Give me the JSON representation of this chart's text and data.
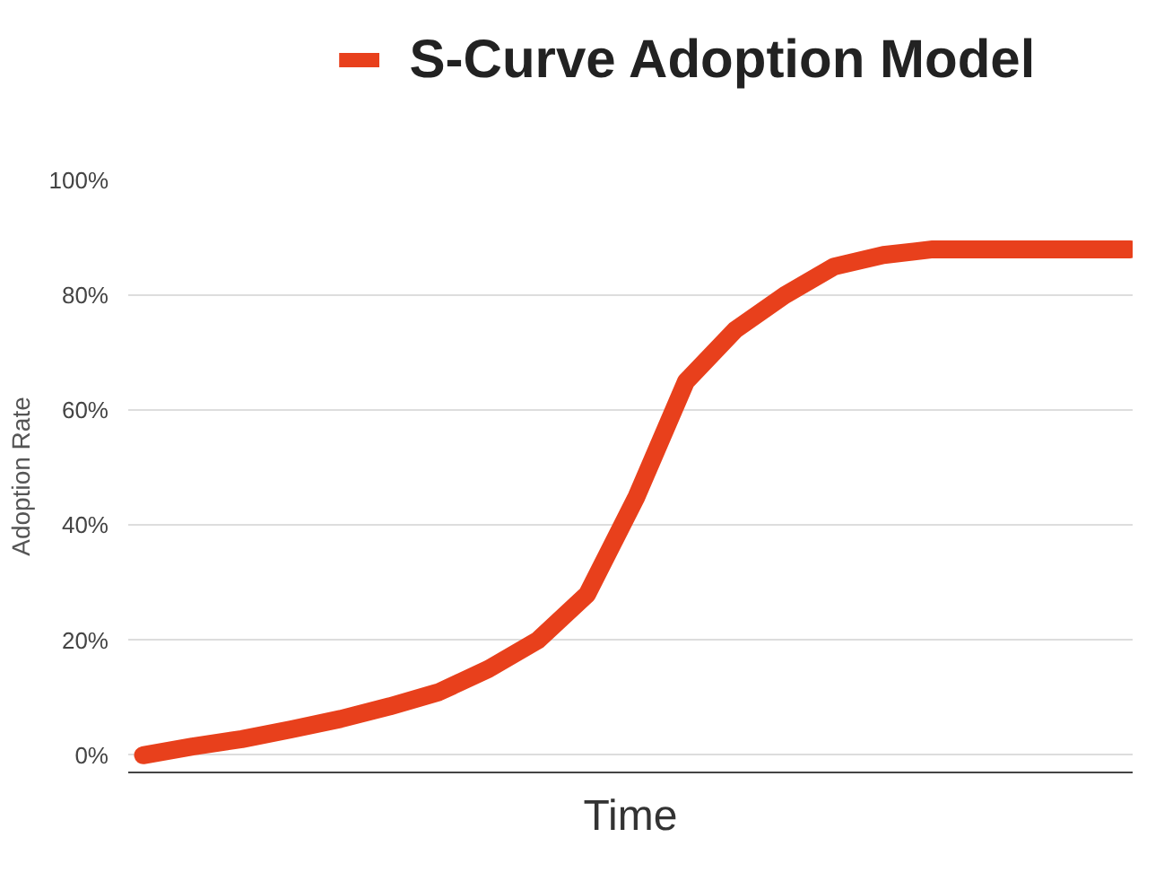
{
  "chart_data": {
    "type": "line",
    "ylabel": "Adoption Rate",
    "xlabel": "Time",
    "categories": [
      null,
      null,
      null,
      null,
      null,
      null,
      null,
      null,
      null,
      null,
      null,
      null,
      null,
      null,
      null,
      null,
      null,
      null,
      null,
      null,
      null
    ],
    "series": [
      {
        "name": "S-Curve Adoption Model",
        "color": "#e8401c",
        "values": [
          0,
          1.5,
          2.8,
          4.5,
          6.3,
          8.5,
          11,
          15,
          20,
          28,
          45,
          65,
          74,
          80,
          85,
          87,
          88,
          88,
          88,
          88,
          88
        ]
      }
    ],
    "ylim": [
      -3,
      100
    ],
    "yticks": [
      {
        "value": 0,
        "label": "0%"
      },
      {
        "value": 20,
        "label": "20%"
      },
      {
        "value": 40,
        "label": "40%"
      },
      {
        "value": 60,
        "label": "60%"
      },
      {
        "value": 80,
        "label": "80%"
      },
      {
        "value": 100,
        "label": "100%"
      }
    ],
    "grid": "y",
    "legend": "top",
    "line_style": "solid"
  }
}
